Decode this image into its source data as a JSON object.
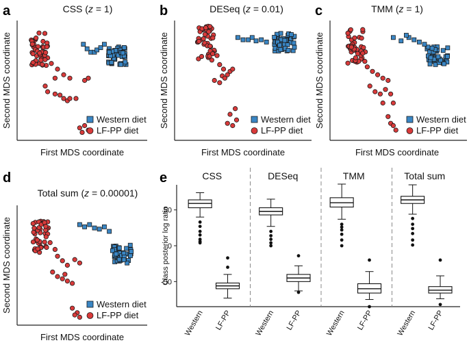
{
  "figure": {
    "panels": [
      {
        "letter": "a",
        "method": "CSS",
        "z_prefix": "(",
        "z_var": "z",
        "z_suffix": " = 1)"
      },
      {
        "letter": "b",
        "method": "DESeq",
        "z_prefix": "(",
        "z_var": "z",
        "z_suffix": " = 0.01)"
      },
      {
        "letter": "c",
        "method": "TMM",
        "z_prefix": "(",
        "z_var": "z",
        "z_suffix": " = 1)"
      },
      {
        "letter": "d",
        "method": "Total sum",
        "z_prefix": "(",
        "z_var": "z",
        "z_suffix": " = 0.00001)"
      }
    ],
    "panel_e_letter": "e",
    "x_axis_label": "First MDS coordinate",
    "y_axis_label": "Second MDS coordinate",
    "legend": {
      "western": "Western diet",
      "lfpp": "LF-PP diet"
    },
    "colors": {
      "western": "#3a86c4",
      "lfpp": "#d93a3a",
      "outline": "#1a1a1a",
      "divider": "#888888"
    }
  },
  "chart_data": [
    {
      "type": "scatter",
      "panel": "a",
      "title": "CSS (z = 1)",
      "xlabel": "First MDS coordinate",
      "ylabel": "Second MDS coordinate",
      "xlim": [
        0,
        100
      ],
      "ylim": [
        0,
        100
      ],
      "legend_position": "bottom-right",
      "series": [
        {
          "name": "Western diet",
          "marker": "square",
          "points": [
            [
              51,
              82
            ],
            [
              57,
              75
            ],
            [
              60,
              75
            ],
            [
              62,
              77
            ],
            [
              65,
              79
            ],
            [
              68,
              82
            ],
            [
              54,
              78
            ],
            [
              72,
              75
            ]
          ]
        },
        {
          "name": "LF-PP diet",
          "marker": "circle",
          "points": [
            [
              12,
              86
            ],
            [
              15,
              92
            ],
            [
              18,
              80
            ],
            [
              20,
              75
            ],
            [
              22,
              70
            ],
            [
              25,
              65
            ],
            [
              30,
              60
            ],
            [
              28,
              52
            ],
            [
              35,
              55
            ],
            [
              40,
              52
            ],
            [
              20,
              45
            ],
            [
              22,
              40
            ],
            [
              28,
              38
            ],
            [
              32,
              37
            ],
            [
              35,
              34
            ],
            [
              38,
              32
            ],
            [
              40,
              34
            ],
            [
              45,
              34
            ],
            [
              52,
              50
            ],
            [
              55,
              52
            ],
            [
              48,
              8
            ],
            [
              52,
              10
            ],
            [
              55,
              6
            ],
            [
              50,
              4
            ]
          ]
        }
      ]
    },
    {
      "type": "scatter",
      "panel": "b",
      "title": "DESeq (z = 0.01)",
      "xlabel": "First MDS coordinate",
      "ylabel": "Second MDS coordinate",
      "xlim": [
        0,
        100
      ],
      "ylim": [
        0,
        100
      ],
      "legend_position": "bottom-right",
      "series": [
        {
          "name": "Western diet",
          "marker": "square",
          "points": [
            [
              46,
              88
            ],
            [
              50,
              86
            ],
            [
              54,
              86
            ],
            [
              57,
              88
            ],
            [
              60,
              85
            ],
            [
              64,
              86
            ],
            [
              68,
              84
            ]
          ]
        },
        {
          "name": "LF-PP diet",
          "marker": "circle",
          "points": [
            [
              15,
              84
            ],
            [
              20,
              82
            ],
            [
              25,
              80
            ],
            [
              28,
              76
            ],
            [
              30,
              72
            ],
            [
              26,
              68
            ],
            [
              32,
              64
            ],
            [
              35,
              60
            ],
            [
              40,
              58
            ],
            [
              42,
              60
            ],
            [
              38,
              55
            ],
            [
              34,
              54
            ],
            [
              28,
              50
            ],
            [
              32,
              48
            ],
            [
              36,
              52
            ],
            [
              40,
              20
            ],
            [
              45,
              15
            ],
            [
              42,
              10
            ],
            [
              38,
              12
            ],
            [
              44,
              25
            ]
          ]
        }
      ]
    },
    {
      "type": "scatter",
      "panel": "c",
      "title": "TMM (z = 1)",
      "xlabel": "First MDS coordinate",
      "ylabel": "Second MDS coordinate",
      "xlim": [
        0,
        100
      ],
      "ylim": [
        0,
        100
      ],
      "legend_position": "bottom-right",
      "series": [
        {
          "name": "Western diet",
          "marker": "square",
          "points": [
            [
              46,
              88
            ],
            [
              52,
              85
            ],
            [
              58,
              88
            ],
            [
              62,
              86
            ],
            [
              66,
              84
            ],
            [
              70,
              82
            ],
            [
              56,
              90
            ]
          ]
        },
        {
          "name": "LF-PP diet",
          "marker": "circle",
          "points": [
            [
              14,
              80
            ],
            [
              18,
              76
            ],
            [
              22,
              70
            ],
            [
              26,
              62
            ],
            [
              30,
              58
            ],
            [
              34,
              55
            ],
            [
              38,
              52
            ],
            [
              42,
              50
            ],
            [
              28,
              45
            ],
            [
              32,
              40
            ],
            [
              36,
              38
            ],
            [
              40,
              42
            ],
            [
              44,
              38
            ],
            [
              46,
              30
            ],
            [
              38,
              30
            ],
            [
              42,
              18
            ],
            [
              44,
              12
            ],
            [
              46,
              10
            ],
            [
              48,
              6
            ]
          ]
        }
      ]
    },
    {
      "type": "scatter",
      "panel": "d",
      "title": "Total sum (z = 0.00001)",
      "xlabel": "First MDS coordinate",
      "ylabel": "Second MDS coordinate",
      "xlim": [
        0,
        100
      ],
      "ylim": [
        0,
        100
      ],
      "legend_position": "bottom-right",
      "series": [
        {
          "name": "Western diet",
          "marker": "square",
          "points": [
            [
              48,
              86
            ],
            [
              52,
              84
            ],
            [
              56,
              86
            ],
            [
              60,
              83
            ],
            [
              64,
              82
            ],
            [
              68,
              84
            ],
            [
              72,
              80
            ]
          ]
        },
        {
          "name": "LF-PP diet",
          "marker": "circle",
          "points": [
            [
              12,
              88
            ],
            [
              16,
              82
            ],
            [
              20,
              78
            ],
            [
              24,
              70
            ],
            [
              28,
              64
            ],
            [
              30,
              58
            ],
            [
              34,
              54
            ],
            [
              38,
              50
            ],
            [
              44,
              55
            ],
            [
              48,
              52
            ],
            [
              26,
              44
            ],
            [
              30,
              40
            ],
            [
              34,
              38
            ],
            [
              38,
              36
            ],
            [
              42,
              34
            ],
            [
              36,
              42
            ],
            [
              42,
              12
            ],
            [
              46,
              8
            ],
            [
              48,
              4
            ],
            [
              44,
              6
            ]
          ]
        }
      ]
    },
    {
      "type": "box",
      "panel": "e",
      "ylabel": "Class posterior log ratio",
      "ylim": [
        -85,
        85
      ],
      "yticks": [
        -50,
        0,
        50
      ],
      "groups": [
        "CSS",
        "DESeq",
        "TMM",
        "Total sum"
      ],
      "categories": [
        "Western",
        "LF-PP"
      ],
      "boxes": [
        {
          "group": "CSS",
          "category": "Western",
          "min": 40,
          "q1": 53,
          "median": 59,
          "q3": 64,
          "max": 74,
          "outliers": [
            33,
            27,
            20,
            15,
            9,
            6,
            4
          ]
        },
        {
          "group": "CSS",
          "category": "LF-PP",
          "min": -73,
          "q1": -60,
          "median": -56,
          "q3": -52,
          "max": -40,
          "outliers": [
            -30,
            -17
          ]
        },
        {
          "group": "DESeq",
          "category": "Western",
          "min": 27,
          "q1": 43,
          "median": 48,
          "q3": 53,
          "max": 65,
          "outliers": [
            20,
            14,
            9,
            4,
            0
          ]
        },
        {
          "group": "DESeq",
          "category": "LF-PP",
          "min": -63,
          "q1": -50,
          "median": -45,
          "q3": -40,
          "max": -28,
          "outliers": [
            -14,
            -65
          ]
        },
        {
          "group": "TMM",
          "category": "Western",
          "min": 37,
          "q1": 54,
          "median": 60,
          "q3": 67,
          "max": 86,
          "outliers": [
            30,
            26,
            22,
            16,
            8,
            0
          ]
        },
        {
          "group": "TMM",
          "category": "LF-PP",
          "min": -75,
          "q1": -66,
          "median": -60,
          "q3": -53,
          "max": -36,
          "outliers": [
            -20,
            -85
          ]
        },
        {
          "group": "Total sum",
          "category": "Western",
          "min": 44,
          "q1": 59,
          "median": 64,
          "q3": 69,
          "max": 85,
          "outliers": [
            38,
            30,
            24,
            17,
            8,
            1
          ]
        },
        {
          "group": "Total sum",
          "category": "LF-PP",
          "min": -74,
          "q1": -66,
          "median": -62,
          "q3": -57,
          "max": -42,
          "outliers": [
            -20,
            -82
          ]
        }
      ]
    }
  ]
}
